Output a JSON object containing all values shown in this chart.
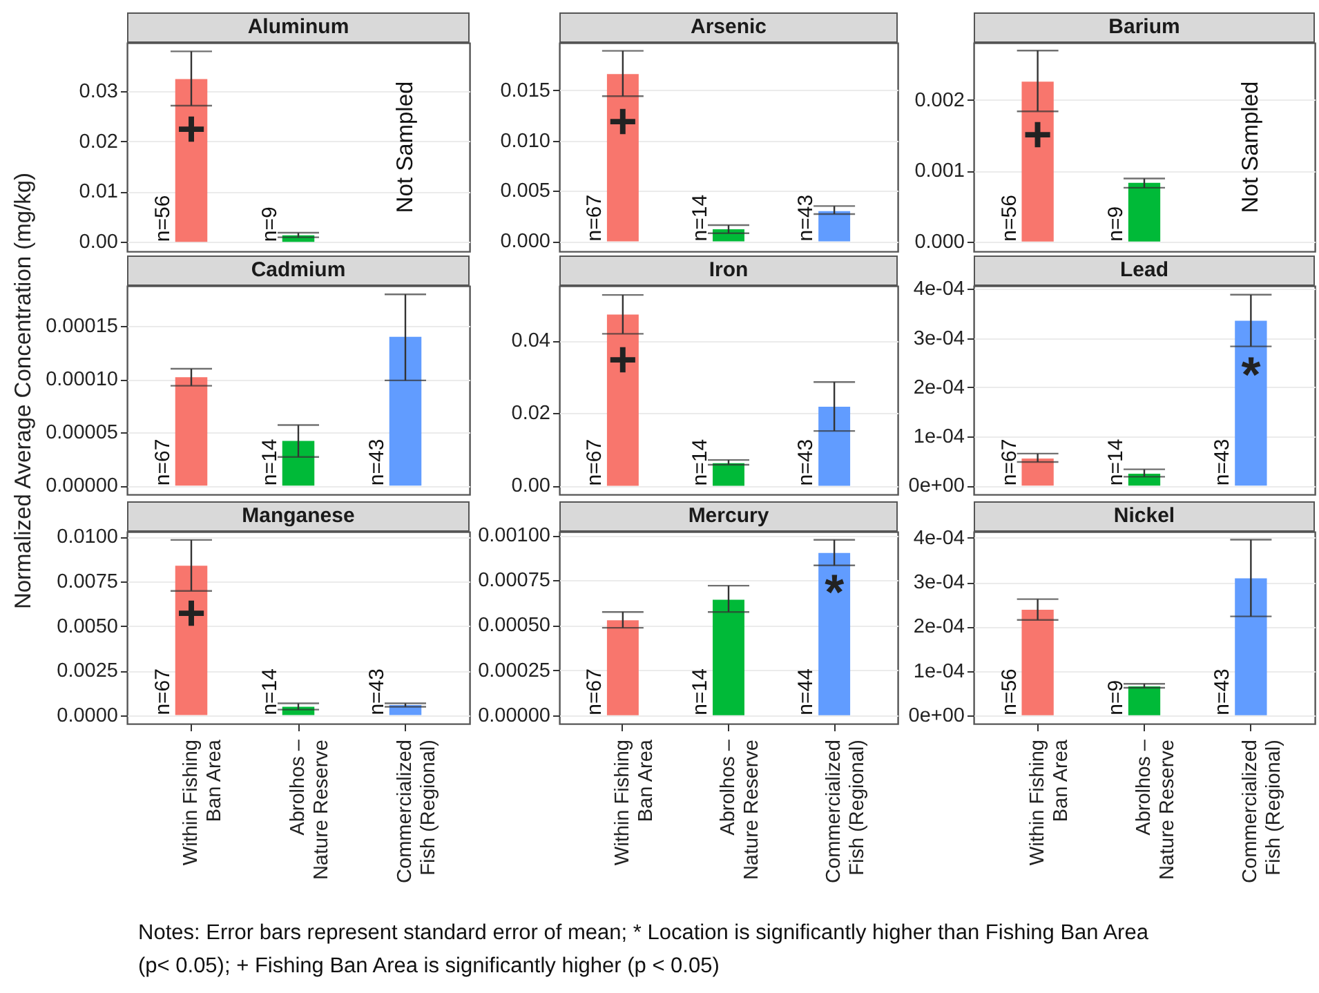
{
  "chart_data": [
    {
      "type": "bar",
      "title": "Aluminum",
      "categories": [
        "Within Fishing\nBan Area",
        "Abrolhos –\nNature Reserve",
        "Commercialized\nFish (Regional)"
      ],
      "values": [
        0.0324,
        0.0013,
        null
      ],
      "errors": [
        [
          0.0271,
          0.0379
        ],
        [
          0.0009,
          0.0018
        ],
        null
      ],
      "colors": [
        "#f8766d",
        "#00ba38",
        null
      ],
      "ylim": [
        -0.0019,
        0.0396
      ],
      "yticks": [
        {
          "value": 0,
          "label": "0.00"
        },
        0.01,
        0.02,
        0.03
      ],
      "grid": true,
      "tick_labels": "y",
      "annotations": [
        {
          "text": "n=56",
          "x": "Within Fishing\nBan Area",
          "y": 0
        },
        {
          "text": "n=9",
          "x": "Abrolhos –\nNature Reserve",
          "y": 0
        },
        "Not Sampled",
        {
          "text": "+",
          "x": "Within Fishing\nBan Area",
          "y": 0.0238
        }
      ]
    },
    {
      "type": "bar",
      "title": "Arsenic",
      "categories": [
        "Within Fishing\nBan Area",
        "Abrolhos –\nNature Reserve",
        "Commercialized\nFish (Regional)"
      ],
      "values": [
        0.0166,
        0.0012,
        0.003
      ],
      "errors": [
        [
          0.0144,
          0.0189
        ],
        [
          0.0008,
          0.0016
        ],
        [
          0.0027,
          0.0035
        ]
      ],
      "colors": [
        "#f8766d",
        "#00ba38",
        "#619cff"
      ],
      "ylim": [
        -0.001,
        0.0197
      ],
      "yticks": [
        {
          "value": 0,
          "label": "0.000"
        },
        0.005,
        {
          "value": 0.01,
          "label": "0.010"
        },
        0.015
      ],
      "grid": true,
      "tick_labels": "y",
      "annotations": [
        {
          "text": "n=67",
          "x": "Within Fishing\nBan Area",
          "y": 0
        },
        {
          "text": "n=14",
          "x": "Abrolhos –\nNature Reserve",
          "y": 0
        },
        {
          "text": "n=43",
          "x": "Commercialized\nFish (Regional)",
          "y": 0
        },
        {
          "text": "+",
          "x": "Within Fishing\nBan Area",
          "y": 0.0126
        }
      ]
    },
    {
      "type": "bar",
      "title": "Barium",
      "categories": [
        "Within Fishing\nBan Area",
        "Abrolhos –\nNature Reserve",
        "Commercialized\nFish (Regional)"
      ],
      "values": [
        0.00226,
        0.00083,
        null
      ],
      "errors": [
        [
          0.00184,
          0.0027
        ],
        [
          0.00076,
          0.00089
        ],
        null
      ],
      "colors": [
        "#f8766d",
        "#00ba38",
        null
      ],
      "ylim": [
        -0.00014,
        0.00281
      ],
      "yticks": [
        {
          "value": 0,
          "label": "0.000"
        },
        0.001,
        0.002
      ],
      "grid": true,
      "tick_labels": "y",
      "annotations": [
        {
          "text": "n=56",
          "x": "Within Fishing\nBan Area",
          "y": 0
        },
        {
          "text": "n=9",
          "x": "Abrolhos –\nNature Reserve",
          "y": 0
        },
        "Not Sampled",
        {
          "text": "+",
          "x": "Within Fishing\nBan Area",
          "y": 0.00161
        }
      ]
    },
    {
      "type": "bar",
      "title": "Cadmium",
      "ylabel": "Normalized Average Concentration (mg/kg)",
      "categories": [
        "Within Fishing\nBan Area",
        "Abrolhos –\nNature Reserve",
        "Commercialized\nFish (Regional)"
      ],
      "values": [
        0.000102,
        4.2e-05,
        0.00014
      ],
      "errors": [
        [
          9.4e-05,
          0.00011
        ],
        [
          2.7e-05,
          5.7e-05
        ],
        [
          9.9e-05,
          0.00018
        ]
      ],
      "colors": [
        "#f8766d",
        "#00ba38",
        "#619cff"
      ],
      "ylim": [
        -8.3e-06,
        0.000188
      ],
      "yticks": [
        {
          "value": 0,
          "label": "0.00000"
        },
        {
          "value": 5e-05,
          "label": "0.00005"
        },
        {
          "value": 0.0001,
          "label": "0.00010"
        },
        0.00015
      ],
      "grid": true,
      "tick_labels": "y",
      "annotations": [
        {
          "text": "n=67",
          "x": "Within Fishing\nBan Area",
          "y": 0
        },
        {
          "text": "n=14",
          "x": "Abrolhos –\nNature Reserve",
          "y": 0
        },
        {
          "text": "n=43",
          "x": "Commercialized\nFish (Regional)",
          "y": 0
        }
      ]
    },
    {
      "type": "bar",
      "title": "Iron",
      "categories": [
        "Within Fishing\nBan Area",
        "Abrolhos –\nNature Reserve",
        "Commercialized\nFish (Regional)"
      ],
      "values": [
        0.0472,
        0.0062,
        0.0218
      ],
      "errors": [
        [
          0.0419,
          0.0526
        ],
        [
          0.0058,
          0.0071
        ],
        [
          0.0151,
          0.0286
        ]
      ],
      "colors": [
        "#f8766d",
        "#00ba38",
        "#619cff"
      ],
      "ylim": [
        -0.0024,
        0.0551
      ],
      "yticks": [
        {
          "value": 0,
          "label": "0.00"
        },
        0.02,
        0.04
      ],
      "grid": true,
      "tick_labels": "y",
      "annotations": [
        {
          "text": "n=67",
          "x": "Within Fishing\nBan Area",
          "y": 0
        },
        {
          "text": "n=14",
          "x": "Abrolhos –\nNature Reserve",
          "y": 0
        },
        {
          "text": "n=43",
          "x": "Commercialized\nFish (Regional)",
          "y": 0
        },
        {
          "text": "+",
          "x": "Within Fishing\nBan Area",
          "y": 0.0367
        }
      ]
    },
    {
      "type": "bar",
      "title": "Lead",
      "categories": [
        "Within Fishing\nBan Area",
        "Abrolhos –\nNature Reserve",
        "Commercialized\nFish (Regional)"
      ],
      "values": [
        5.5e-05,
        2.4e-05,
        0.000335
      ],
      "errors": [
        [
          4.8e-05,
          6.5e-05
        ],
        [
          1.8e-05,
          3.3e-05
        ],
        [
          0.000283,
          0.000388
        ]
      ],
      "colors": [
        "#f8766d",
        "#00ba38",
        "#619cff"
      ],
      "ylim": [
        -1.8e-05,
        0.000406
      ],
      "yticks": [
        {
          "value": 0,
          "label": "0e+00"
        },
        {
          "value": 0.0001,
          "label": "1e-04"
        },
        {
          "value": 0.0002,
          "label": "2e-04"
        },
        {
          "value": 0.0003,
          "label": "3e-04"
        },
        {
          "value": 0.0004,
          "label": "4e-04"
        }
      ],
      "grid": true,
      "tick_labels": "y",
      "annotations": [
        {
          "text": "n=67",
          "x": "Within Fishing\nBan Area",
          "y": 0
        },
        {
          "text": "n=14",
          "x": "Abrolhos –\nNature Reserve",
          "y": 0
        },
        {
          "text": "n=43",
          "x": "Commercialized\nFish (Regional)",
          "y": 0
        },
        {
          "text": "*",
          "x": "Commercialized\nFish (Regional)",
          "y": 0.000239
        }
      ]
    },
    {
      "type": "bar",
      "title": "Manganese",
      "categories": [
        "Within Fishing\nBan Area",
        "Abrolhos –\nNature Reserve",
        "Commercialized\nFish (Regional)"
      ],
      "values": [
        0.00838,
        0.00047,
        0.00057
      ],
      "errors": [
        [
          0.00697,
          0.00983
        ],
        [
          0.00031,
          0.00066
        ],
        [
          0.00047,
          0.00066
        ]
      ],
      "colors": [
        "#f8766d",
        "#00ba38",
        "#619cff"
      ],
      "ylim": [
        -0.00048,
        0.01029
      ],
      "yticks": [
        {
          "value": 0,
          "label": "0.0000"
        },
        0.0025,
        {
          "value": 0.005,
          "label": "0.0050"
        },
        0.0075,
        {
          "value": 0.01,
          "label": "0.0100"
        }
      ],
      "grid": true,
      "annotations": [
        {
          "text": "n=67",
          "x": "Within Fishing\nBan Area",
          "y": 0
        },
        {
          "text": "n=14",
          "x": "Abrolhos –\nNature Reserve",
          "y": 0
        },
        {
          "text": "n=43",
          "x": "Commercialized\nFish (Regional)",
          "y": 0
        },
        {
          "text": "+",
          "x": "Within Fishing\nBan Area",
          "y": 0.00611
        },
        "Notes: Error bars represent standard error of mean; * Location is significantly higher than Fishing Ban Area",
        "(p< 0.05); + Fishing Ban Area is significantly higher (p < 0.05)"
      ]
    },
    {
      "type": "bar",
      "title": "Mercury",
      "categories": [
        "Within Fishing\nBan Area",
        "Abrolhos –\nNature Reserve",
        "Commercialized\nFish (Regional)"
      ],
      "values": [
        0.000528,
        0.000642,
        0.000902
      ],
      "errors": [
        [
          0.000486,
          0.000574
        ],
        [
          0.000574,
          0.00072
        ],
        [
          0.000833,
          0.000975
        ]
      ],
      "colors": [
        "#f8766d",
        "#00ba38",
        "#619cff"
      ],
      "ylim": [
        -4.7e-05,
        0.00102
      ],
      "yticks": [
        {
          "value": 0,
          "label": "0.00000"
        },
        0.00025,
        {
          "value": 0.0005,
          "label": "0.00050"
        },
        0.00075,
        {
          "value": 0.001,
          "label": "0.00100"
        }
      ],
      "grid": true,
      "annotations": [
        {
          "text": "n=67",
          "x": "Within Fishing\nBan Area",
          "y": 0
        },
        {
          "text": "n=14",
          "x": "Abrolhos –\nNature Reserve",
          "y": 0
        },
        {
          "text": "n=44",
          "x": "Commercialized\nFish (Regional)",
          "y": 0
        },
        {
          "text": "*",
          "x": "Commercialized\nFish (Regional)",
          "y": 0.00072
        }
      ]
    },
    {
      "type": "bar",
      "title": "Nickel",
      "categories": [
        "Within Fishing\nBan Area",
        "Abrolhos –\nNature Reserve",
        "Commercialized\nFish (Regional)"
      ],
      "values": [
        0.000238,
        6.5e-05,
        0.000309
      ],
      "errors": [
        [
          0.000215,
          0.000262
        ],
        [
          6.2e-05,
          7.1e-05
        ],
        [
          0.000223,
          0.000396
        ]
      ],
      "colors": [
        "#f8766d",
        "#00ba38",
        "#619cff"
      ],
      "ylim": [
        -1.9e-05,
        0.000414
      ],
      "yticks": [
        {
          "value": 0,
          "label": "0e+00"
        },
        {
          "value": 0.0001,
          "label": "1e-04"
        },
        {
          "value": 0.0002,
          "label": "2e-04"
        },
        {
          "value": 0.0003,
          "label": "3e-04"
        },
        {
          "value": 0.0004,
          "label": "4e-04"
        }
      ],
      "grid": true,
      "annotations": [
        {
          "text": "n=56",
          "x": "Within Fishing\nBan Area",
          "y": 0
        },
        {
          "text": "n=9",
          "x": "Abrolhos –\nNature Reserve",
          "y": 0
        },
        {
          "text": "n=43",
          "x": "Commercialized\nFish (Regional)",
          "y": 0
        }
      ]
    }
  ]
}
